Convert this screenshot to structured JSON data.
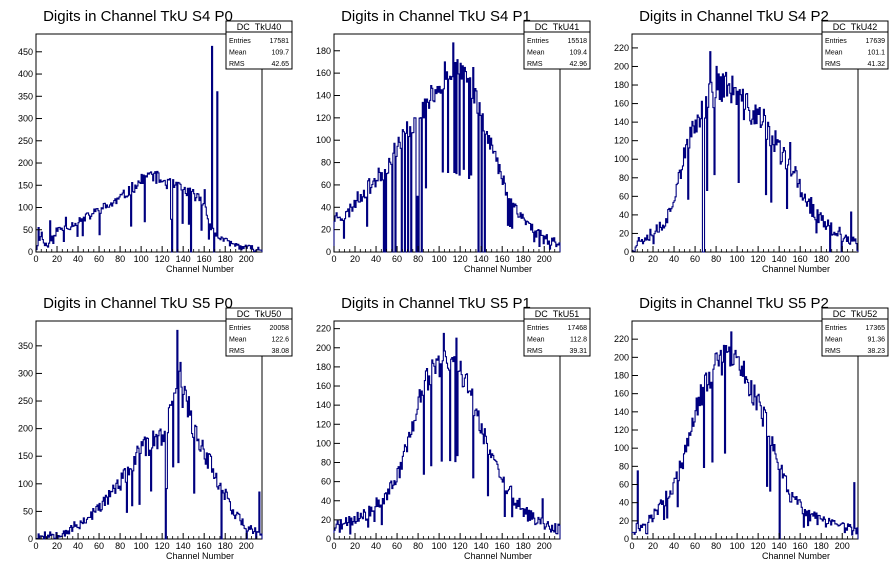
{
  "chart_data": [
    {
      "type": "bar",
      "title": "Digits in Channel TkU S4 P0",
      "xlabel": "Channel Number",
      "ylabel": "",
      "xlim": [
        0,
        215
      ],
      "ylim": [
        0,
        490
      ],
      "xticks": [
        0,
        20,
        40,
        60,
        80,
        100,
        120,
        140,
        160,
        180,
        200
      ],
      "yticks": [
        0,
        50,
        100,
        150,
        200,
        250,
        300,
        350,
        400,
        450
      ],
      "stats": {
        "name": "DC_TkU40",
        "Entries": "17581",
        "Mean": "109.7",
        "RMS": "42.65"
      },
      "profile": [
        [
          0,
          5
        ],
        [
          2,
          20
        ],
        [
          5,
          45
        ],
        [
          8,
          15
        ],
        [
          14,
          25
        ],
        [
          20,
          50
        ],
        [
          30,
          55
        ],
        [
          40,
          70
        ],
        [
          50,
          80
        ],
        [
          60,
          95
        ],
        [
          70,
          105
        ],
        [
          80,
          120
        ],
        [
          90,
          140
        ],
        [
          100,
          160
        ],
        [
          110,
          175
        ],
        [
          120,
          160
        ],
        [
          130,
          150
        ],
        [
          140,
          140
        ],
        [
          150,
          130
        ],
        [
          160,
          110
        ],
        [
          166,
          60
        ],
        [
          170,
          40
        ],
        [
          180,
          25
        ],
        [
          190,
          15
        ],
        [
          200,
          10
        ],
        [
          215,
          5
        ]
      ],
      "noise": 10,
      "gaps": [
        129,
        134,
        147,
        169
      ],
      "spikes": [
        [
          167,
          462
        ],
        [
          172,
          360
        ],
        [
          160,
          140
        ],
        [
          2,
          55
        ],
        [
          13,
          70
        ],
        [
          28,
          78
        ]
      ],
      "seed": 11
    },
    {
      "type": "bar",
      "title": "Digits in Channel TkU S4 P1",
      "xlabel": "Channel Number",
      "ylabel": "",
      "xlim": [
        0,
        215
      ],
      "ylim": [
        0,
        195
      ],
      "xticks": [
        0,
        20,
        40,
        60,
        80,
        100,
        120,
        140,
        160,
        180,
        200
      ],
      "yticks": [
        0,
        20,
        40,
        60,
        80,
        100,
        120,
        140,
        160,
        180
      ],
      "stats": {
        "name": "DC_TkU41",
        "Entries": "15518",
        "Mean": "109.4",
        "RMS": "42.96"
      },
      "profile": [
        [
          0,
          30
        ],
        [
          5,
          35
        ],
        [
          10,
          30
        ],
        [
          20,
          45
        ],
        [
          30,
          55
        ],
        [
          40,
          65
        ],
        [
          50,
          75
        ],
        [
          60,
          95
        ],
        [
          70,
          110
        ],
        [
          80,
          120
        ],
        [
          90,
          135
        ],
        [
          100,
          150
        ],
        [
          110,
          162
        ],
        [
          120,
          160
        ],
        [
          130,
          150
        ],
        [
          140,
          125
        ],
        [
          150,
          95
        ],
        [
          160,
          65
        ],
        [
          170,
          45
        ],
        [
          180,
          30
        ],
        [
          190,
          20
        ],
        [
          200,
          12
        ],
        [
          215,
          8
        ]
      ],
      "noise": 8,
      "gaps": [
        47,
        49,
        55,
        58,
        64,
        67,
        70,
        73,
        78,
        80,
        83,
        137,
        140,
        143
      ],
      "spikes": [
        [
          113,
          187
        ],
        [
          132,
          165
        ],
        [
          117,
          172
        ],
        [
          105,
          170
        ]
      ],
      "seed": 23
    },
    {
      "type": "bar",
      "title": "Digits in Channel TkU S4 P2",
      "xlabel": "Channel Number",
      "ylabel": "",
      "xlim": [
        0,
        215
      ],
      "ylim": [
        0,
        235
      ],
      "xticks": [
        0,
        20,
        40,
        60,
        80,
        100,
        120,
        140,
        160,
        180,
        200
      ],
      "yticks": [
        0,
        20,
        40,
        60,
        80,
        100,
        120,
        140,
        160,
        180,
        200,
        220
      ],
      "stats": {
        "name": "DC_TkU42",
        "Entries": "17639",
        "Mean": "101.1",
        "RMS": "41.32"
      },
      "profile": [
        [
          0,
          5
        ],
        [
          5,
          10
        ],
        [
          15,
          20
        ],
        [
          25,
          25
        ],
        [
          35,
          40
        ],
        [
          45,
          85
        ],
        [
          55,
          120
        ],
        [
          65,
          150
        ],
        [
          75,
          170
        ],
        [
          85,
          180
        ],
        [
          95,
          175
        ],
        [
          105,
          160
        ],
        [
          115,
          150
        ],
        [
          125,
          140
        ],
        [
          135,
          120
        ],
        [
          145,
          100
        ],
        [
          155,
          80
        ],
        [
          165,
          60
        ],
        [
          175,
          40
        ],
        [
          185,
          30
        ],
        [
          195,
          20
        ],
        [
          205,
          15
        ],
        [
          215,
          5
        ]
      ],
      "noise": 12,
      "gaps": [
        67,
        68,
        188,
        199
      ],
      "spikes": [
        [
          74,
          216
        ],
        [
          155,
          92
        ],
        [
          150,
          118
        ],
        [
          208,
          43
        ],
        [
          80,
          200
        ]
      ],
      "seed": 37
    },
    {
      "type": "bar",
      "title": "Digits in Channel TkU S5 P0",
      "xlabel": "Channel Number",
      "ylabel": "",
      "xlim": [
        0,
        215
      ],
      "ylim": [
        0,
        395
      ],
      "xticks": [
        0,
        20,
        40,
        60,
        80,
        100,
        120,
        140,
        160,
        180,
        200
      ],
      "yticks": [
        0,
        50,
        100,
        150,
        200,
        250,
        300,
        350
      ],
      "stats": {
        "name": "DC_TkU50",
        "Entries": "20058",
        "Mean": "122.6",
        "RMS": "38.08"
      },
      "profile": [
        [
          0,
          5
        ],
        [
          20,
          10
        ],
        [
          30,
          15
        ],
        [
          40,
          25
        ],
        [
          50,
          40
        ],
        [
          60,
          55
        ],
        [
          70,
          80
        ],
        [
          80,
          100
        ],
        [
          90,
          130
        ],
        [
          100,
          160
        ],
        [
          110,
          175
        ],
        [
          120,
          185
        ],
        [
          125,
          195
        ],
        [
          130,
          260
        ],
        [
          135,
          300
        ],
        [
          140,
          260
        ],
        [
          145,
          240
        ],
        [
          150,
          200
        ],
        [
          160,
          160
        ],
        [
          170,
          120
        ],
        [
          180,
          80
        ],
        [
          190,
          45
        ],
        [
          200,
          20
        ],
        [
          215,
          5
        ]
      ],
      "noise": 14,
      "gaps": [
        123,
        176,
        200
      ],
      "spikes": [
        [
          134,
          378
        ],
        [
          137,
          320
        ],
        [
          143,
          250
        ],
        [
          212,
          85
        ],
        [
          180,
          90
        ]
      ],
      "seed": 53
    },
    {
      "type": "bar",
      "title": "Digits in Channel TkU S5 P1",
      "xlabel": "Channel Number",
      "ylabel": "",
      "xlim": [
        0,
        215
      ],
      "ylim": [
        0,
        228
      ],
      "xticks": [
        0,
        20,
        40,
        60,
        80,
        100,
        120,
        140,
        160,
        180,
        200
      ],
      "yticks": [
        0,
        20,
        40,
        60,
        80,
        100,
        120,
        140,
        160,
        180,
        200,
        220
      ],
      "stats": {
        "name": "DC_TkU51",
        "Entries": "17468",
        "Mean": "112.8",
        "RMS": "39.31"
      },
      "profile": [
        [
          0,
          12
        ],
        [
          10,
          15
        ],
        [
          20,
          20
        ],
        [
          30,
          25
        ],
        [
          40,
          35
        ],
        [
          50,
          45
        ],
        [
          60,
          65
        ],
        [
          70,
          100
        ],
        [
          80,
          140
        ],
        [
          90,
          170
        ],
        [
          100,
          185
        ],
        [
          110,
          185
        ],
        [
          120,
          180
        ],
        [
          130,
          150
        ],
        [
          140,
          120
        ],
        [
          150,
          85
        ],
        [
          160,
          60
        ],
        [
          170,
          45
        ],
        [
          180,
          30
        ],
        [
          190,
          20
        ],
        [
          200,
          15
        ],
        [
          215,
          10
        ]
      ],
      "noise": 10,
      "gaps": [],
      "spikes": [
        [
          104,
          215
        ],
        [
          116,
          210
        ],
        [
          145,
          100
        ],
        [
          198,
          42
        ]
      ],
      "seed": 71
    },
    {
      "type": "bar",
      "title": "Digits in Channel TkU S5 P2",
      "xlabel": "Channel Number",
      "ylabel": "",
      "xlim": [
        0,
        215
      ],
      "ylim": [
        0,
        240
      ],
      "xticks": [
        0,
        20,
        40,
        60,
        80,
        100,
        120,
        140,
        160,
        180,
        200
      ],
      "yticks": [
        0,
        20,
        40,
        60,
        80,
        100,
        120,
        140,
        160,
        180,
        200,
        220
      ],
      "stats": {
        "name": "DC_TkU52",
        "Entries": "17365",
        "Mean": "91.36",
        "RMS": "38.23"
      },
      "profile": [
        [
          0,
          10
        ],
        [
          10,
          15
        ],
        [
          20,
          25
        ],
        [
          30,
          40
        ],
        [
          40,
          60
        ],
        [
          50,
          90
        ],
        [
          60,
          140
        ],
        [
          70,
          170
        ],
        [
          80,
          190
        ],
        [
          90,
          200
        ],
        [
          100,
          195
        ],
        [
          110,
          175
        ],
        [
          120,
          150
        ],
        [
          130,
          120
        ],
        [
          140,
          80
        ],
        [
          150,
          50
        ],
        [
          160,
          35
        ],
        [
          170,
          25
        ],
        [
          180,
          20
        ],
        [
          190,
          15
        ],
        [
          200,
          12
        ],
        [
          215,
          10
        ]
      ],
      "noise": 10,
      "gaps": [
        140
      ],
      "spikes": [
        [
          94,
          228
        ],
        [
          5,
          75
        ],
        [
          211,
          62
        ],
        [
          28,
          38
        ]
      ],
      "seed": 97
    }
  ]
}
